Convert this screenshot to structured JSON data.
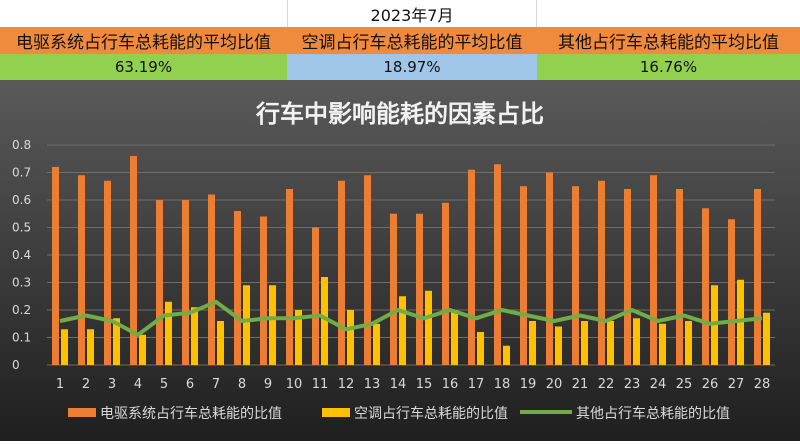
{
  "summary": {
    "period": "2023年7月",
    "columns": [
      {
        "label": "电驱系统占行车总耗能的平均比值",
        "value": "63.19%"
      },
      {
        "label": "空调占行车总耗能的平均比值",
        "value": "18.97%"
      },
      {
        "label": "其他占行车总耗能的平均比值",
        "value": "16.76%"
      }
    ]
  },
  "colors": {
    "background_top": "#5a5a5a",
    "background_bottom": "#202020",
    "drive": "#ed7d31",
    "ac": "#ffc000",
    "other": "#70ad47",
    "label_orange": "#f08a3c",
    "label_green": "#92d050",
    "label_blue": "#9fc5e8"
  },
  "chart_data": {
    "type": "bar",
    "title": "行车中影响能耗的因素占比",
    "categories": [
      "1",
      "2",
      "3",
      "4",
      "5",
      "6",
      "7",
      "8",
      "9",
      "10",
      "11",
      "12",
      "13",
      "14",
      "15",
      "16",
      "17",
      "18",
      "19",
      "20",
      "21",
      "22",
      "23",
      "24",
      "25",
      "26",
      "27",
      "28"
    ],
    "ylim": [
      0,
      0.8
    ],
    "yticks": [
      "0",
      "0.1",
      "0.2",
      "0.3",
      "0.4",
      "0.5",
      "0.6",
      "0.7",
      "0.8"
    ],
    "grid": true,
    "legend_position": "bottom",
    "series": [
      {
        "name": "电驱系统占行车总耗能的比值",
        "type": "bar",
        "values": [
          0.72,
          0.69,
          0.67,
          0.76,
          0.6,
          0.6,
          0.62,
          0.56,
          0.54,
          0.64,
          0.5,
          0.67,
          0.69,
          0.55,
          0.55,
          0.59,
          0.71,
          0.73,
          0.65,
          0.7,
          0.65,
          0.67,
          0.64,
          0.69,
          0.64,
          0.57,
          0.53,
          0.64
        ]
      },
      {
        "name": "空调占行车总耗能的比值",
        "type": "bar",
        "values": [
          0.13,
          0.13,
          0.17,
          0.11,
          0.23,
          0.21,
          0.16,
          0.29,
          0.29,
          0.2,
          0.32,
          0.2,
          0.15,
          0.25,
          0.27,
          0.2,
          0.12,
          0.07,
          0.16,
          0.14,
          0.16,
          0.16,
          0.17,
          0.15,
          0.16,
          0.29,
          0.31,
          0.19
        ]
      },
      {
        "name": "其他占行车总耗能的比值",
        "type": "line",
        "values": [
          0.16,
          0.18,
          0.16,
          0.11,
          0.18,
          0.19,
          0.23,
          0.16,
          0.17,
          0.17,
          0.18,
          0.13,
          0.15,
          0.2,
          0.17,
          0.2,
          0.17,
          0.2,
          0.18,
          0.16,
          0.18,
          0.16,
          0.2,
          0.16,
          0.18,
          0.15,
          0.16,
          0.17
        ]
      }
    ]
  }
}
